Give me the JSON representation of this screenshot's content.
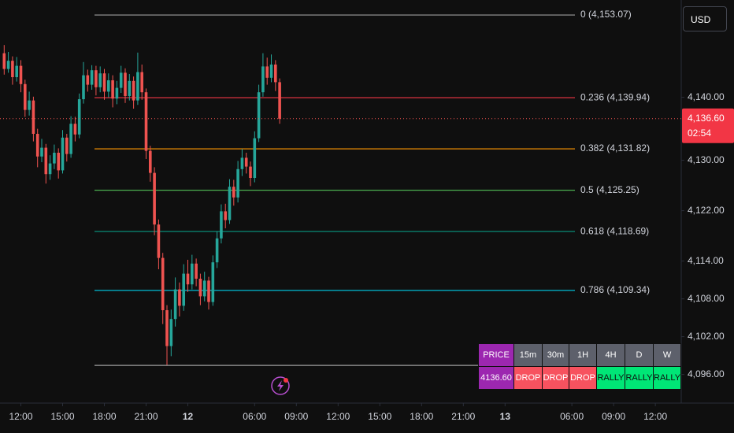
{
  "chart_data": {
    "type": "candlestick",
    "colors": {
      "up": "#26a69a",
      "down": "#ef5350"
    },
    "open": [
      4147.0,
      4144.5,
      4145.8,
      4143.2,
      4145.0,
      4142.1,
      4138.0,
      4139.5,
      4134.2,
      4130.6,
      4132.0,
      4127.8,
      4129.5,
      4131.2,
      4128.4,
      4133.6,
      4131.0,
      4135.8,
      4134.1,
      4139.7,
      4143.5,
      4142.0,
      4144.3,
      4141.6,
      4143.8,
      4140.9,
      4142.7,
      4139.8,
      4141.5,
      4143.9,
      4140.2,
      4142.6,
      4139.5,
      4144.0,
      4140.8,
      4131.5,
      4128.0,
      4119.8,
      4114.5,
      4106.2,
      4100.5,
      4104.8,
      4109.5,
      4106.9,
      4112.0,
      4110.3,
      4113.6,
      4111.2,
      4108.4,
      4110.9,
      4107.5,
      4113.8,
      4117.6,
      4121.9,
      4120.5,
      4125.8,
      4124.1,
      4128.6,
      4130.4,
      4129.0,
      4127.2,
      4133.5,
      4140.8,
      4144.9,
      4143.1,
      4145.2,
      4142.4
    ],
    "high": [
      4148.3,
      4147.2,
      4146.5,
      4146.4,
      4145.9,
      4142.8,
      4140.9,
      4140.1,
      4135.0,
      4133.4,
      4132.6,
      4130.8,
      4132.5,
      4131.9,
      4134.8,
      4134.2,
      4137.0,
      4136.9,
      4140.6,
      4145.6,
      4144.4,
      4145.1,
      4145.0,
      4144.9,
      4144.5,
      4143.8,
      4143.5,
      4142.6,
      4145.0,
      4144.6,
      4143.7,
      4143.3,
      4147.1,
      4145.2,
      4141.4,
      4132.3,
      4128.9,
      4120.6,
      4115.3,
      4107.0,
      4106.3,
      4111.4,
      4110.6,
      4113.5,
      4114.2,
      4115.0,
      4114.4,
      4112.0,
      4112.3,
      4111.5,
      4114.9,
      4118.7,
      4123.0,
      4123.1,
      4127.0,
      4126.9,
      4129.9,
      4131.8,
      4131.2,
      4129.8,
      4134.6,
      4142.0,
      4147.0,
      4146.3,
      4146.8,
      4145.9,
      4143.0
    ],
    "low": [
      4143.6,
      4143.9,
      4142.0,
      4142.5,
      4140.8,
      4136.9,
      4137.1,
      4133.0,
      4128.9,
      4129.7,
      4126.3,
      4126.9,
      4128.6,
      4127.1,
      4127.9,
      4129.8,
      4130.4,
      4133.0,
      4133.5,
      4139.0,
      4140.9,
      4141.2,
      4140.3,
      4140.8,
      4139.6,
      4140.0,
      4138.4,
      4138.9,
      4140.7,
      4139.1,
      4139.5,
      4138.2,
      4138.8,
      4139.6,
      4130.2,
      4126.6,
      4118.1,
      4112.7,
      4104.0,
      4097.5,
      4098.9,
      4103.6,
      4105.2,
      4106.1,
      4109.1,
      4109.5,
      4110.0,
      4107.0,
      4107.6,
      4106.3,
      4106.9,
      4112.9,
      4116.8,
      4119.2,
      4119.9,
      4122.8,
      4123.3,
      4127.5,
      4127.9,
      4125.9,
      4126.5,
      4132.9,
      4140.1,
      4142.0,
      4142.4,
      4141.0,
      4135.8
    ],
    "close": [
      4144.5,
      4145.8,
      4143.2,
      4145.0,
      4142.1,
      4138.0,
      4139.5,
      4134.2,
      4130.6,
      4132.0,
      4127.8,
      4129.5,
      4131.2,
      4128.4,
      4133.6,
      4131.0,
      4135.8,
      4134.1,
      4139.7,
      4143.5,
      4142.0,
      4144.3,
      4141.6,
      4143.8,
      4140.9,
      4142.7,
      4139.8,
      4141.5,
      4143.9,
      4140.2,
      4142.6,
      4139.5,
      4144.0,
      4140.8,
      4131.5,
      4128.0,
      4119.8,
      4114.5,
      4106.2,
      4100.5,
      4104.8,
      4109.5,
      4106.9,
      4112.0,
      4110.3,
      4113.6,
      4111.2,
      4108.4,
      4110.9,
      4107.5,
      4113.8,
      4117.6,
      4121.9,
      4120.5,
      4125.8,
      4124.1,
      4128.6,
      4130.4,
      4129.0,
      4127.2,
      4133.5,
      4140.8,
      4144.9,
      4143.1,
      4145.2,
      4142.4,
      4136.6
    ],
    "xlim": [
      -1,
      162.2
    ],
    "xticks": [
      {
        "value": 4,
        "label": "12:00"
      },
      {
        "value": 14,
        "label": "15:00"
      },
      {
        "value": 24,
        "label": "18:00"
      },
      {
        "value": 34,
        "label": "21:00"
      },
      {
        "value": 44,
        "label": "12",
        "bold": true
      },
      {
        "value": 60,
        "label": "06:00"
      },
      {
        "value": 70,
        "label": "09:00"
      },
      {
        "value": 80,
        "label": "12:00"
      },
      {
        "value": 90,
        "label": "15:00"
      },
      {
        "value": 100,
        "label": "18:00"
      },
      {
        "value": 110,
        "label": "21:00"
      },
      {
        "value": 120,
        "label": "13",
        "bold": true
      },
      {
        "value": 136,
        "label": "06:00"
      },
      {
        "value": 146,
        "label": "09:00"
      },
      {
        "value": 156,
        "label": "12:00"
      }
    ],
    "ylim": [
      4091.45,
      4155.45
    ],
    "yticks": [
      {
        "value": 4140,
        "label": "4,140.00"
      },
      {
        "value": 4130,
        "label": "4,130.00"
      },
      {
        "value": 4122,
        "label": "4,122.00"
      },
      {
        "value": 4114,
        "label": "4,114.00"
      },
      {
        "value": 4108,
        "label": "4,108.00"
      },
      {
        "value": 4102,
        "label": "4,102.00"
      },
      {
        "value": 4096,
        "label": "4,096.00"
      }
    ],
    "grid": false,
    "fib_levels": [
      {
        "value": 4153.07,
        "label": "0 (4,153.07)",
        "color": "#9e9e9e"
      },
      {
        "value": 4139.94,
        "label": "0.236 (4,139.94)",
        "color": "#f23645"
      },
      {
        "value": 4131.82,
        "label": "0.382 (4,131.82)",
        "color": "#ff9800"
      },
      {
        "value": 4125.25,
        "label": "0.5 (4,125.25)",
        "color": "#4caf50"
      },
      {
        "value": 4118.69,
        "label": "0.618 (4,118.69)",
        "color": "#089981"
      },
      {
        "value": 4109.34,
        "label": "0.786 (4,109.34)",
        "color": "#00bcd4"
      },
      {
        "value": 4097.43,
        "color": "#9e9e9e"
      }
    ],
    "last_price": {
      "value": 4136.6,
      "label": "4,136.60"
    },
    "countdown": "02:54",
    "currency": "USD"
  },
  "table": {
    "header": [
      "PRICE",
      "15m",
      "30m",
      "1H",
      "4H",
      "D",
      "W"
    ],
    "rows": [
      [
        "4136.60",
        "DROP",
        "DROP",
        "DROP",
        "RALLY",
        "RALLY",
        "RALLY"
      ]
    ]
  }
}
